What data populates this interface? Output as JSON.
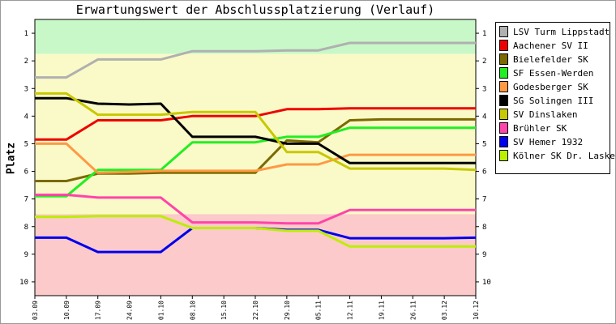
{
  "chart_data": {
    "type": "line",
    "title": "Erwartungswert der Abschlussplatzierung (Verlauf)",
    "ylabel": "Platz",
    "xlabel": "",
    "categories": [
      "03.09",
      "10.09",
      "17.09",
      "24.09",
      "01.10",
      "08.10",
      "15.10",
      "22.10",
      "29.10",
      "05.11",
      "12.11",
      "19.11",
      "26.11",
      "03.12",
      "10.12"
    ],
    "ylim": [
      1,
      10
    ],
    "y_ticks": [
      "1",
      "2",
      "3",
      "4",
      "5",
      "6",
      "7",
      "8",
      "9",
      "10"
    ],
    "y_inverted": true,
    "bands": [
      {
        "from": 0.5,
        "to": 1.75,
        "color": "#c8f8c8"
      },
      {
        "from": 1.75,
        "to": 7.55,
        "color": "#fafac8"
      },
      {
        "from": 7.55,
        "to": 10.5,
        "color": "#fccaca"
      }
    ],
    "legend_position": "right",
    "series": [
      {
        "name": "LSV Turm Lippstadt",
        "color": "#b0b0b0",
        "values": [
          2.6,
          2.6,
          1.95,
          1.95,
          1.95,
          1.65,
          1.65,
          1.65,
          1.62,
          1.62,
          1.35,
          1.35,
          1.35,
          1.35,
          1.35
        ]
      },
      {
        "name": "Aachener SV II",
        "color": "#ee0000",
        "values": [
          4.85,
          4.85,
          4.15,
          4.15,
          4.15,
          4.0,
          4.0,
          4.0,
          3.75,
          3.75,
          3.72,
          3.72,
          3.72,
          3.72,
          3.72
        ]
      },
      {
        "name": "Bielefelder SK",
        "color": "#7a6a00",
        "values": [
          6.35,
          6.35,
          6.08,
          6.08,
          6.05,
          6.05,
          6.05,
          6.05,
          4.88,
          4.95,
          4.15,
          4.12,
          4.12,
          4.12,
          4.12
        ]
      },
      {
        "name": "SF Essen-Werden",
        "color": "#22ee22",
        "values": [
          6.9,
          6.9,
          5.95,
          5.95,
          5.95,
          4.95,
          4.95,
          4.95,
          4.75,
          4.75,
          4.42,
          4.42,
          4.42,
          4.42,
          4.42
        ]
      },
      {
        "name": "Godesberger SK",
        "color": "#ff9944",
        "values": [
          5.0,
          5.0,
          6.05,
          6.02,
          5.98,
          5.98,
          5.98,
          5.98,
          5.75,
          5.75,
          5.4,
          5.4,
          5.4,
          5.4,
          5.4
        ]
      },
      {
        "name": "SG Solingen III",
        "color": "#000000",
        "values": [
          3.35,
          3.35,
          3.55,
          3.58,
          3.55,
          4.75,
          4.75,
          4.75,
          5.0,
          5.0,
          5.7,
          5.7,
          5.7,
          5.7,
          5.7
        ]
      },
      {
        "name": "SV Dinslaken",
        "color": "#c8c800",
        "values": [
          3.18,
          3.18,
          3.95,
          3.95,
          3.95,
          3.85,
          3.85,
          3.85,
          5.3,
          5.3,
          5.9,
          5.9,
          5.9,
          5.9,
          5.95
        ]
      },
      {
        "name": "Brühler SK",
        "color": "#ff44aa",
        "values": [
          6.85,
          6.85,
          6.95,
          6.95,
          6.95,
          7.85,
          7.85,
          7.85,
          7.88,
          7.88,
          7.4,
          7.4,
          7.4,
          7.4,
          7.4
        ]
      },
      {
        "name": "SV Hemer 1932",
        "color": "#0000ee",
        "values": [
          8.4,
          8.4,
          8.92,
          8.92,
          8.92,
          8.05,
          8.05,
          8.05,
          8.12,
          8.12,
          8.42,
          8.42,
          8.42,
          8.42,
          8.4
        ]
      },
      {
        "name": "Kölner SK Dr. Lasker",
        "color": "#bbee00",
        "values": [
          7.65,
          7.65,
          7.62,
          7.62,
          7.62,
          8.05,
          8.05,
          8.05,
          8.15,
          8.15,
          8.72,
          8.72,
          8.72,
          8.72,
          8.72
        ]
      }
    ]
  }
}
